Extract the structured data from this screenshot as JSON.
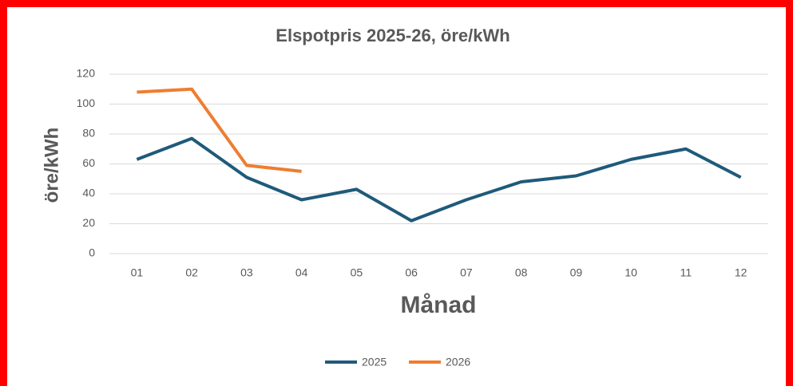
{
  "chart_data": {
    "type": "line",
    "title": "Elspotpris 2025-26, öre/kWh",
    "x_label": "Månad",
    "y_label": "öre/kWh",
    "categories": [
      "01",
      "02",
      "03",
      "04",
      "05",
      "06",
      "07",
      "08",
      "09",
      "10",
      "11",
      "12"
    ],
    "series": [
      {
        "name": "2025",
        "color": "#1f5a7a",
        "values": [
          63,
          77,
          51,
          36,
          43,
          22,
          36,
          48,
          52,
          63,
          70,
          51
        ]
      },
      {
        "name": "2026",
        "color": "#ee7d31",
        "values": [
          108,
          110,
          59,
          55,
          null,
          null,
          null,
          null,
          null,
          null,
          null,
          null
        ]
      }
    ],
    "ylim": [
      0,
      120
    ],
    "yticks": [
      0,
      20,
      40,
      60,
      80,
      100,
      120
    ],
    "grid": true,
    "legend": "bottom"
  }
}
